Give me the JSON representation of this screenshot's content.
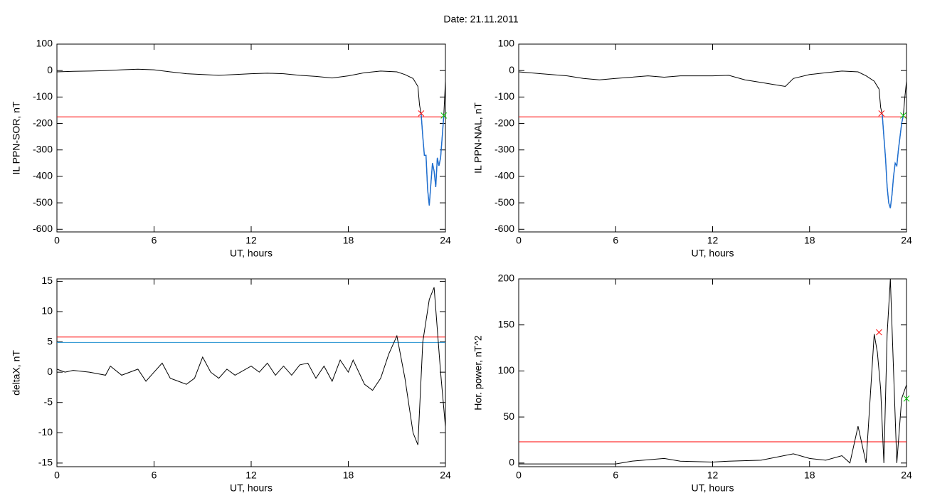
{
  "title": "Date:  21.11.2011",
  "chart_data": [
    {
      "type": "line",
      "ylabel": "IL PPN-SOR, nT",
      "xlabel": "UT, hours",
      "xlim": [
        0,
        24
      ],
      "xticks": [
        0,
        6,
        12,
        18,
        24
      ],
      "ylim": [
        -610,
        100
      ],
      "yticks": [
        -600,
        -500,
        -400,
        -300,
        -200,
        -100,
        0,
        100
      ],
      "x": [
        0,
        1,
        2,
        3,
        4,
        5,
        6,
        7,
        8,
        9,
        10,
        11,
        12,
        13,
        14,
        15,
        16,
        17,
        18,
        19,
        20,
        21,
        21.5,
        22,
        22.3,
        22.4,
        22.5,
        22.6,
        22.7,
        22.8,
        22.9,
        23,
        23.1,
        23.2,
        23.3,
        23.4,
        23.5,
        23.6,
        23.7,
        23.8,
        23.9,
        24
      ],
      "series": [
        {
          "color": "#000000",
          "values": [
            -5,
            -3,
            -2,
            0,
            3,
            5,
            3,
            -5,
            -12,
            -15,
            -18,
            -15,
            -12,
            -10,
            -12,
            -18,
            -22,
            -28,
            -20,
            -8,
            -2,
            -5,
            -15,
            -30,
            -60,
            -130,
            -165,
            -250,
            -320,
            -320,
            -450,
            -510,
            -430,
            -350,
            -380,
            -440,
            -330,
            -360,
            -330,
            -250,
            -170,
            -40
          ]
        },
        {
          "color": "#1f6fd0",
          "values": [
            null,
            null,
            null,
            null,
            null,
            null,
            null,
            null,
            null,
            null,
            null,
            null,
            null,
            null,
            null,
            null,
            null,
            null,
            null,
            null,
            null,
            null,
            null,
            null,
            null,
            null,
            -165,
            -250,
            -320,
            -320,
            -450,
            -510,
            -430,
            -350,
            -380,
            -440,
            -330,
            -360,
            -330,
            -250,
            -170,
            null
          ]
        }
      ],
      "hlines": [
        {
          "value": -175,
          "color": "#ff0000"
        }
      ],
      "points": [
        {
          "x": 22.5,
          "y": -162,
          "color": "#ff0000"
        },
        {
          "x": 23.9,
          "y": -170,
          "color": "#00cc00"
        }
      ]
    },
    {
      "type": "line",
      "ylabel": "IL PPN-NAL, nT",
      "xlabel": "UT, hours",
      "xlim": [
        0,
        24
      ],
      "xticks": [
        0,
        6,
        12,
        18,
        24
      ],
      "ylim": [
        -610,
        100
      ],
      "yticks": [
        -600,
        -500,
        -400,
        -300,
        -200,
        -100,
        0,
        100
      ],
      "x": [
        0,
        1,
        2,
        3,
        4,
        5,
        6,
        7,
        8,
        9,
        10,
        11,
        12,
        13,
        14,
        15,
        16,
        16.5,
        17,
        18,
        19,
        20,
        21,
        21.5,
        22,
        22.3,
        22.4,
        22.5,
        22.6,
        22.7,
        22.8,
        22.9,
        23,
        23.1,
        23.2,
        23.3,
        23.4,
        23.5,
        23.6,
        23.7,
        23.8,
        23.9,
        24
      ],
      "series": [
        {
          "color": "#000000",
          "values": [
            -5,
            -10,
            -15,
            -20,
            -30,
            -35,
            -30,
            -25,
            -20,
            -25,
            -20,
            -20,
            -20,
            -18,
            -35,
            -45,
            -55,
            -60,
            -30,
            -15,
            -8,
            -2,
            -5,
            -20,
            -40,
            -70,
            -140,
            -165,
            -250,
            -330,
            -440,
            -500,
            -520,
            -470,
            -400,
            -350,
            -360,
            -300,
            -250,
            -200,
            -170,
            -100,
            -40
          ]
        },
        {
          "color": "#1f6fd0",
          "values": [
            null,
            null,
            null,
            null,
            null,
            null,
            null,
            null,
            null,
            null,
            null,
            null,
            null,
            null,
            null,
            null,
            null,
            null,
            null,
            null,
            null,
            null,
            null,
            null,
            null,
            null,
            null,
            -165,
            -250,
            -330,
            -440,
            -500,
            -520,
            -470,
            -400,
            -350,
            -360,
            -300,
            -250,
            -200,
            -170,
            null,
            null
          ]
        }
      ],
      "hlines": [
        {
          "value": -175,
          "color": "#ff0000"
        }
      ],
      "points": [
        {
          "x": 22.45,
          "y": -162,
          "color": "#ff0000"
        },
        {
          "x": 23.8,
          "y": -170,
          "color": "#00cc00"
        }
      ]
    },
    {
      "type": "line",
      "ylabel": "deltaX, nT",
      "xlabel": "UT, hours",
      "xlim": [
        0,
        24
      ],
      "xticks": [
        0,
        6,
        12,
        18,
        24
      ],
      "ylim": [
        -15.6,
        15.4
      ],
      "yticks": [
        -15,
        -10,
        -5,
        0,
        5,
        10,
        15
      ],
      "x": [
        0,
        0.5,
        1,
        2,
        3,
        3.3,
        4,
        5,
        5.5,
        6,
        6.5,
        7,
        7.5,
        8,
        8.5,
        9,
        9.5,
        10,
        10.5,
        11,
        12,
        12.5,
        13,
        13.5,
        14,
        14.5,
        15,
        15.5,
        16,
        16.5,
        17,
        17.5,
        18,
        18.3,
        19,
        19.5,
        20,
        20.5,
        21,
        21.5,
        22,
        22.3,
        22.6,
        23,
        23.3,
        23.7,
        24
      ],
      "series": [
        {
          "color": "#000000",
          "values": [
            0.5,
            0,
            0.3,
            0,
            -0.5,
            1,
            -0.5,
            0.5,
            -1.5,
            0,
            1.5,
            -1,
            -1.5,
            -2,
            -1,
            2.5,
            0,
            -1,
            0.5,
            -0.5,
            1,
            0,
            1.5,
            -0.5,
            1,
            -0.5,
            1.2,
            1.5,
            -1,
            1,
            -1.5,
            2,
            0,
            2,
            -2,
            -3,
            -1,
            3,
            6,
            -1,
            -10,
            -12,
            5,
            12,
            14,
            0,
            -9
          ]
        }
      ],
      "hlines": [
        {
          "value": 5.8,
          "color": "#ff0000"
        },
        {
          "value": 4.9,
          "color": "#1f8fd0"
        }
      ],
      "points": []
    },
    {
      "type": "line",
      "ylabel": "Hor. power, nT^2",
      "xlabel": "UT, hours",
      "xlim": [
        0,
        24
      ],
      "xticks": [
        0,
        6,
        12,
        18,
        24
      ],
      "ylim": [
        -4,
        200
      ],
      "yticks": [
        0,
        50,
        100,
        150,
        200
      ],
      "x": [
        0,
        6,
        7,
        9,
        10,
        12,
        13,
        15,
        17,
        18,
        19,
        20,
        20.5,
        21,
        21.5,
        22,
        22.2,
        22.4,
        22.6,
        22.8,
        23,
        23.2,
        23.4,
        23.7,
        24
      ],
      "series": [
        {
          "color": "#000000",
          "values": [
            -1,
            -1,
            2,
            5,
            2,
            1,
            2,
            3,
            10,
            5,
            3,
            8,
            0,
            40,
            0,
            140,
            120,
            80,
            0,
            140,
            200,
            100,
            0,
            70,
            85
          ]
        }
      ],
      "hlines": [
        {
          "value": 23,
          "color": "#ff0000"
        }
      ],
      "points": [
        {
          "x": 22.3,
          "y": 142,
          "color": "#ff0000"
        },
        {
          "x": 24,
          "y": 70,
          "color": "#00cc00"
        }
      ]
    }
  ]
}
